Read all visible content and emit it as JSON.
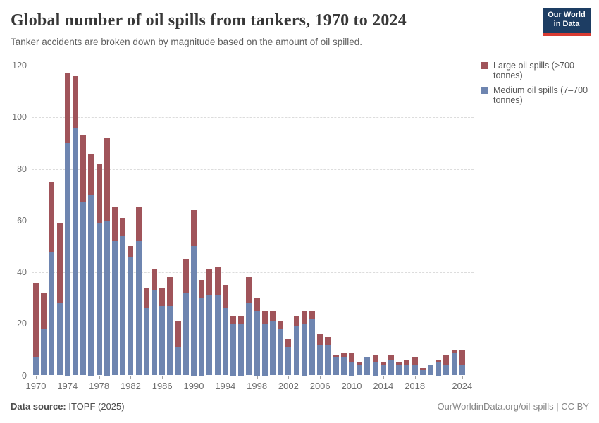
{
  "header": {
    "title": "Global number of oil spills from tankers, 1970 to 2024",
    "subtitle": "Tanker accidents are broken down by magnitude based on the amount of oil spilled.",
    "logo": {
      "line1": "Our World",
      "line2": "in Data",
      "bg_color": "#1d3d63",
      "accent_color": "#d93b32"
    }
  },
  "legend": {
    "items": [
      {
        "label": "Large oil spills (>700 tonnes)",
        "color": "#a0545a"
      },
      {
        "label": "Medium oil spills (7–700 tonnes)",
        "color": "#6e85b0"
      }
    ]
  },
  "footer": {
    "source_label": "Data source:",
    "source_value": " ITOPF (2025)",
    "attribution": "OurWorldinData.org/oil-spills | CC BY"
  },
  "chart_data": {
    "type": "bar",
    "stacked": true,
    "title": "Global number of oil spills from tankers, 1970 to 2024",
    "xlabel": "",
    "ylabel": "",
    "ylim": [
      0,
      120
    ],
    "yticks": [
      0,
      20,
      40,
      60,
      80,
      100,
      120
    ],
    "grid": "horizontal-dashed",
    "legend_position": "right",
    "x": [
      1970,
      1971,
      1972,
      1973,
      1974,
      1975,
      1976,
      1977,
      1978,
      1979,
      1980,
      1981,
      1982,
      1983,
      1984,
      1985,
      1986,
      1987,
      1988,
      1989,
      1990,
      1991,
      1992,
      1993,
      1994,
      1995,
      1996,
      1997,
      1998,
      1999,
      2000,
      2001,
      2002,
      2003,
      2004,
      2005,
      2006,
      2007,
      2008,
      2009,
      2010,
      2011,
      2012,
      2013,
      2014,
      2015,
      2016,
      2017,
      2018,
      2019,
      2020,
      2021,
      2022,
      2023,
      2024
    ],
    "xtick_labels": [
      1970,
      1974,
      1978,
      1982,
      1986,
      1990,
      1994,
      1998,
      2002,
      2006,
      2010,
      2014,
      2018,
      2024
    ],
    "series": [
      {
        "name": "Medium oil spills (7–700 tonnes)",
        "color": "#6e85b0",
        "values": [
          7,
          18,
          48,
          28,
          90,
          96,
          67,
          70,
          59,
          60,
          52,
          54,
          46,
          52,
          26,
          33,
          27,
          27,
          11,
          32,
          50,
          30,
          31,
          31,
          26,
          20,
          20,
          28,
          25,
          20,
          21,
          18,
          11,
          19,
          20,
          22,
          12,
          12,
          7,
          7,
          5,
          4,
          7,
          5,
          4,
          6,
          4,
          4,
          4,
          2,
          4,
          5,
          4,
          9,
          4
        ]
      },
      {
        "name": "Large oil spills (>700 tonnes)",
        "color": "#a0545a",
        "values": [
          29,
          14,
          27,
          31,
          27,
          20,
          26,
          16,
          23,
          32,
          13,
          7,
          4,
          13,
          8,
          8,
          7,
          11,
          10,
          13,
          14,
          7,
          10,
          11,
          9,
          3,
          3,
          10,
          5,
          5,
          4,
          3,
          3,
          4,
          5,
          3,
          4,
          3,
          1,
          2,
          4,
          1,
          0,
          3,
          1,
          2,
          1,
          2,
          3,
          1,
          0,
          1,
          4,
          1,
          6
        ]
      }
    ]
  }
}
